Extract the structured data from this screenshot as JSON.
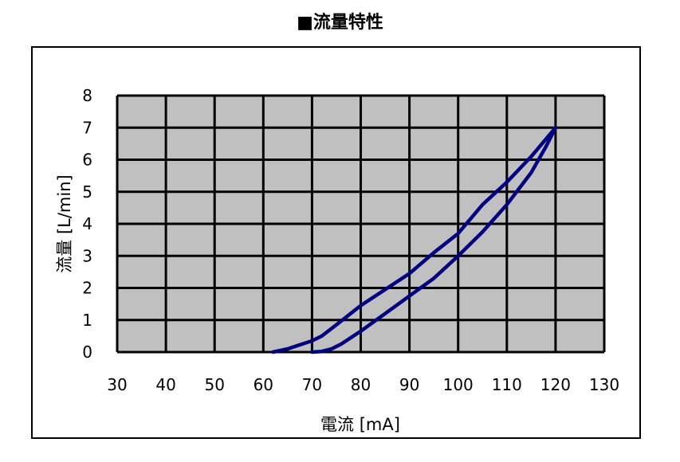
{
  "chart_data": {
    "type": "line",
    "title": "■流量特性",
    "xlabel": "電流 [mA]",
    "ylabel": "流量 [L/min]",
    "xlim": [
      30,
      130
    ],
    "ylim": [
      0,
      8
    ],
    "xticks": [
      "30",
      "40",
      "50",
      "60",
      "70",
      "80",
      "90",
      "100",
      "110",
      "120",
      "130"
    ],
    "yticks": [
      "0",
      "1",
      "2",
      "3",
      "4",
      "5",
      "6",
      "7",
      "8"
    ],
    "grid": true,
    "legend": "none",
    "colors": {
      "plot_bg": "#c0c0c0",
      "grid": "#000000",
      "series": "#000080"
    },
    "series": [
      {
        "x": [
          62,
          65,
          67,
          70,
          72,
          75,
          80,
          85,
          90,
          95,
          100,
          105,
          110,
          115,
          120
        ],
        "values": [
          0,
          0.1,
          0.2,
          0.35,
          0.5,
          0.85,
          1.45,
          1.95,
          2.45,
          3.1,
          3.7,
          4.6,
          5.3,
          6.1,
          7.0
        ]
      },
      {
        "x": [
          70,
          72,
          74,
          76,
          80,
          85,
          90,
          95,
          100,
          105,
          110,
          115,
          118,
          120
        ],
        "values": [
          0,
          0.02,
          0.1,
          0.25,
          0.65,
          1.2,
          1.75,
          2.3,
          3.0,
          3.75,
          4.6,
          5.6,
          6.4,
          7.0
        ]
      }
    ]
  }
}
